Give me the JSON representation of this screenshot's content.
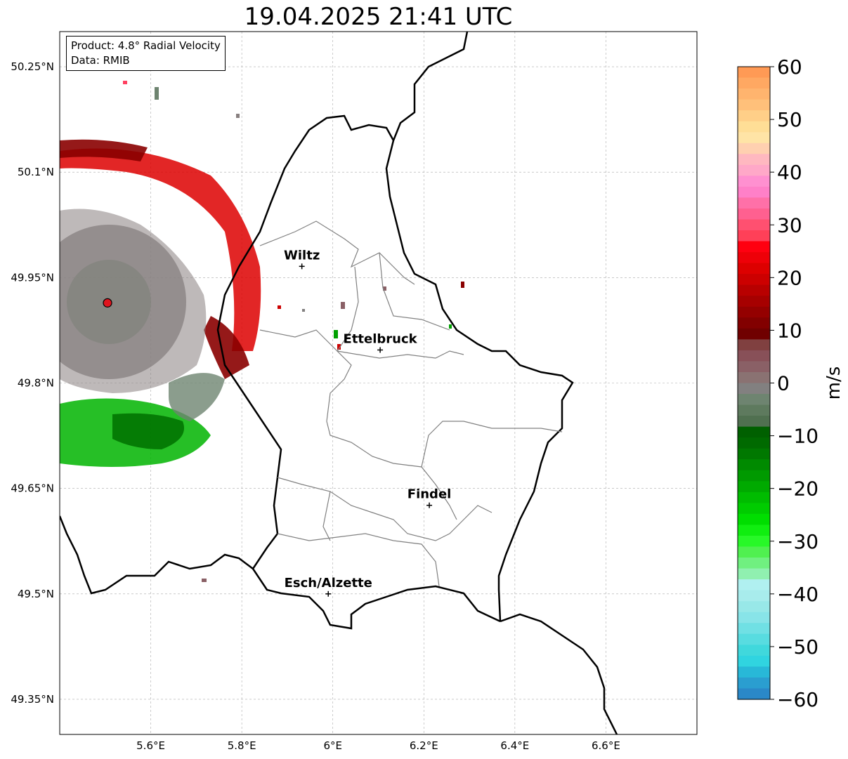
{
  "title": "19.04.2025 21:41 UTC",
  "info": {
    "product": "Product: 4.8° Radial Velocity",
    "data": "Data: RMIB"
  },
  "map": {
    "lon_range": [
      5.4,
      6.8
    ],
    "lat_range": [
      49.3,
      50.3
    ],
    "lon_ticks": [
      5.6,
      5.8,
      6.0,
      6.2,
      6.4,
      6.6
    ],
    "lon_tick_labels": [
      "5.6°E",
      "5.8°E",
      "6°E",
      "6.2°E",
      "6.4°E",
      "6.6°E"
    ],
    "lat_ticks": [
      50.25,
      50.1,
      49.95,
      49.8,
      49.65,
      49.5,
      49.35
    ],
    "lat_tick_labels": [
      "50.25°N",
      "50.1°N",
      "49.95°N",
      "49.8°N",
      "49.65°N",
      "49.5°N",
      "49.35°N"
    ],
    "grid": true,
    "radar_site": {
      "lon": 5.505,
      "lat": 49.914,
      "color": "#e0141e"
    },
    "cities": [
      {
        "name": "Wiltz",
        "lon": 5.932,
        "lat": 49.966
      },
      {
        "name": "Ettelbruck",
        "lon": 6.104,
        "lat": 49.847
      },
      {
        "name": "Findel",
        "lon": 6.212,
        "lat": 49.626
      },
      {
        "name": "Esch/Alzette",
        "lon": 5.99,
        "lat": 49.5
      }
    ]
  },
  "colorbar": {
    "label": "m/s",
    "min": -60,
    "max": 60,
    "ticks": [
      60,
      50,
      40,
      30,
      20,
      10,
      0,
      -10,
      -20,
      -30,
      -40,
      -50,
      -60
    ],
    "tick_labels": [
      "60",
      "50",
      "40",
      "30",
      "20",
      "10",
      "0",
      "−10",
      "−20",
      "−30",
      "−40",
      "−50",
      "−60"
    ],
    "colors_top_to_bottom": [
      "#ff9a55",
      "#ffa862",
      "#ffb46e",
      "#ffc07a",
      "#ffcf88",
      "#ffde96",
      "#ffe4a6",
      "#ffd0b0",
      "#ffb8c0",
      "#ffa8c8",
      "#ff90d0",
      "#ff80c8",
      "#ff70a8",
      "#ff6090",
      "#ff5070",
      "#ff4058",
      "#ff0010",
      "#ee0008",
      "#dd0000",
      "#cc0000",
      "#b80000",
      "#a60000",
      "#940000",
      "#820000",
      "#700000",
      "#804040",
      "#885058",
      "#8a6066",
      "#8a7272",
      "#828080",
      "#6e8470",
      "#5e7a5e",
      "#507050",
      "#006000",
      "#006a00",
      "#007800",
      "#008a00",
      "#009a00",
      "#00aa00",
      "#00bc00",
      "#00cc00",
      "#00de00",
      "#10ee10",
      "#28f828",
      "#50f050",
      "#70f080",
      "#90f0b0",
      "#b0f0f0",
      "#a8ecec",
      "#98e8e8",
      "#88e4e8",
      "#70e0e4",
      "#58dce0",
      "#40d8dc",
      "#30d4e0",
      "#28b8d8",
      "#2a9ed0",
      "#2a88c8"
    ]
  }
}
